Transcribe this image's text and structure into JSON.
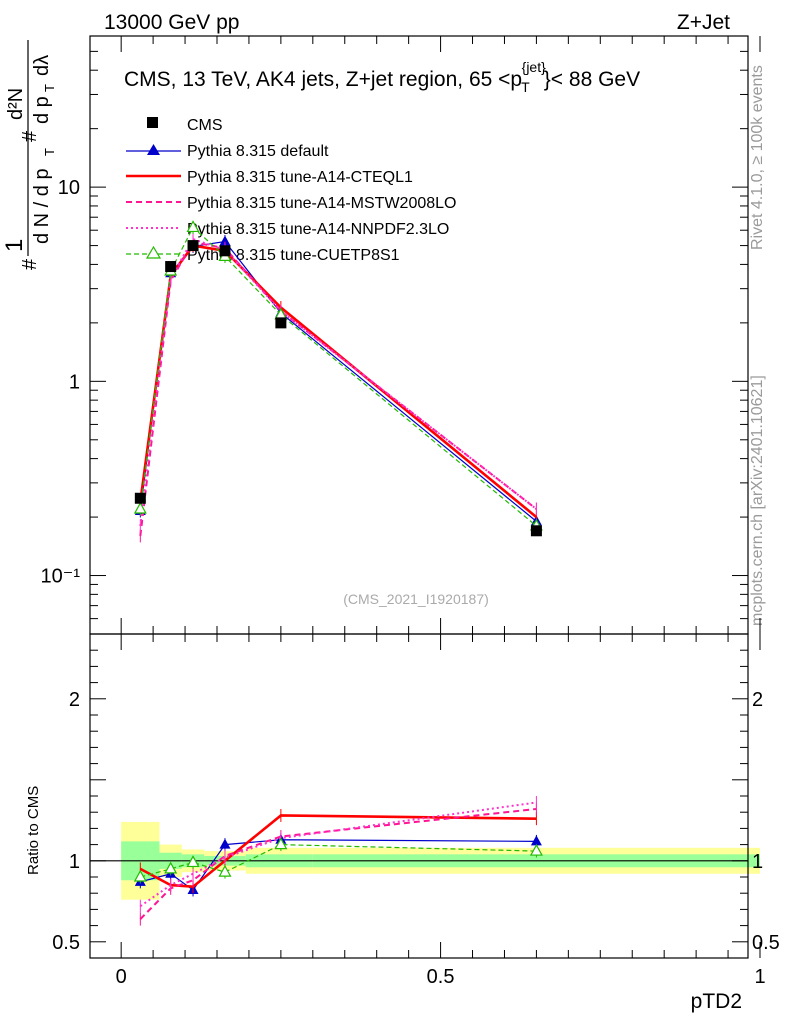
{
  "header": {
    "left": "13000 GeV pp",
    "right": "Z+Jet"
  },
  "side": {
    "rivet": "Rivet 4.1.0, ≥ 100k events",
    "mcplots": "mcplots.cern.ch [arXiv:2401.10621]"
  },
  "chart_data": {
    "type": "line",
    "title": "CMS, 13 TeV, AK4 jets, Z+jet region, 65 <p",
    "title_sup": "{jet}",
    "title_sub": "T",
    "title_tail": "}< 88 GeV",
    "analysis_tag": "(CMS_2021_I1920187)",
    "xlabel": "pTD2",
    "ylabel_top": "d N / d p",
    "ylabel_ratio": "Ratio to CMS",
    "xlim": [
      -0.03,
      1.0
    ],
    "ylim_main": [
      0.05,
      60
    ],
    "ylim_ratio": [
      0.4,
      2.4
    ],
    "x_ticks": [
      {
        "v": 0,
        "label": "0"
      },
      {
        "v": 0.5,
        "label": "0.5"
      },
      {
        "v": 1,
        "label": "1"
      }
    ],
    "y_ticks_main": [
      {
        "v": 10,
        "label": "10"
      },
      {
        "v": 1,
        "label": "1"
      },
      {
        "v": 0.1,
        "label": "10⁻¹"
      }
    ],
    "y_ticks_ratio": [
      {
        "v": 2,
        "label": "2"
      },
      {
        "v": 1,
        "label": "1"
      },
      {
        "v": 0.5,
        "label": "0.5"
      }
    ],
    "x": [
      0.03,
      0.0775,
      0.1125,
      0.1625,
      0.25,
      0.65
    ],
    "cms": {
      "name": "CMS",
      "values": [
        0.25,
        3.9,
        5.0,
        4.7,
        2.0,
        0.17
      ],
      "bins": [
        [
          0.0,
          0.06
        ],
        [
          0.06,
          0.095
        ],
        [
          0.095,
          0.13
        ],
        [
          0.13,
          0.195
        ],
        [
          0.195,
          0.3
        ],
        [
          0.3,
          1.0
        ]
      ],
      "band_yellow": [
        [
          0.76,
          1.24
        ],
        [
          0.9,
          1.1
        ],
        [
          0.93,
          1.07
        ],
        [
          0.94,
          1.06
        ],
        [
          0.92,
          1.08
        ],
        [
          0.92,
          1.08
        ]
      ],
      "band_green": [
        [
          0.88,
          1.12
        ],
        [
          0.95,
          1.05
        ],
        [
          0.96,
          1.04
        ],
        [
          0.97,
          1.03
        ],
        [
          0.96,
          1.04
        ],
        [
          0.96,
          1.04
        ]
      ]
    },
    "series": [
      {
        "name": "Pythia 8.315 default",
        "color": "#0000cc",
        "width": 1.2,
        "dash": "",
        "marker": "triangle-filled",
        "values": [
          0.215,
          3.6,
          4.95,
          5.25,
          2.25,
          0.19
        ],
        "ratio": [
          0.87,
          0.92,
          0.82,
          1.1,
          1.13,
          1.12
        ]
      },
      {
        "name": "Pythia 8.315 tune-A14-CTEQL1",
        "color": "#ff0000",
        "width": 2.6,
        "dash": "",
        "marker": "none",
        "values": [
          0.24,
          3.5,
          5.0,
          4.7,
          2.4,
          0.2
        ],
        "ratio": [
          0.95,
          0.85,
          0.84,
          1.0,
          1.28,
          1.26
        ]
      },
      {
        "name": "Pythia 8.315 tune-A14-MSTW2008LO",
        "color": "#ff1493",
        "width": 2.0,
        "dash": "6,4",
        "marker": "none",
        "values": [
          0.16,
          3.3,
          5.2,
          4.85,
          2.3,
          0.22
        ],
        "ratio": [
          0.64,
          0.83,
          0.88,
          1.03,
          1.15,
          1.32
        ]
      },
      {
        "name": "Pythia 8.315 tune-A14-NNPDF2.3LO",
        "color": "#ff33cc",
        "width": 2.0,
        "dash": "2,3",
        "marker": "none",
        "values": [
          0.18,
          3.4,
          5.4,
          4.75,
          2.3,
          0.22
        ],
        "ratio": [
          0.72,
          0.85,
          0.92,
          1.02,
          1.14,
          1.36
        ]
      },
      {
        "name": "Pythia 8.315 tune-CUETP8S1",
        "color": "#22bb00",
        "width": 1.2,
        "dash": "5,3",
        "marker": "triangle-open",
        "values": [
          0.22,
          3.7,
          6.2,
          4.4,
          2.2,
          0.18
        ],
        "ratio": [
          0.9,
          0.95,
          0.99,
          0.93,
          1.1,
          1.06
        ]
      }
    ]
  }
}
